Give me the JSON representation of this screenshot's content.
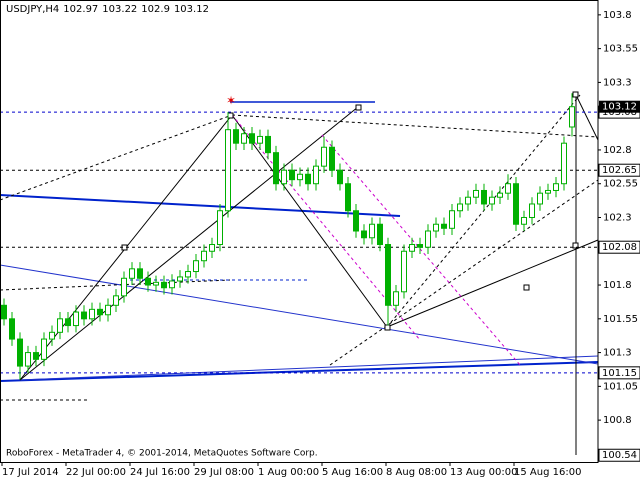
{
  "chart_data": {
    "type": "candlestick",
    "title": "USDJPY,H4",
    "footer": "RoboForex - MetaTrader 4, © 2001-2014, MetaQuotes Software Corp.",
    "up_color": "#ffffff",
    "down_color": "#00b000",
    "wick_color": "#00b000",
    "x": [
      "17 Jul 2014",
      null,
      null,
      null,
      null,
      null,
      null,
      null,
      "22 Jul 00:00",
      null,
      null,
      null,
      null,
      null,
      null,
      null,
      "24 Jul 16:00",
      null,
      null,
      null,
      null,
      null,
      null,
      null,
      "29 Jul 08:00",
      null,
      null,
      null,
      null,
      null,
      null,
      null,
      "1 Aug 00:00",
      null,
      null,
      null,
      null,
      null,
      null,
      null,
      "5 Aug 16:00",
      null,
      null,
      null,
      null,
      null,
      null,
      null,
      "8 Aug 08:00",
      null,
      null,
      null,
      null,
      null,
      null,
      null,
      "13 Aug 00:00",
      null,
      null,
      null,
      null,
      null,
      null,
      null,
      "15 Aug 16:00",
      null,
      null,
      null,
      null,
      null,
      null,
      null
    ],
    "open": [
      101.65,
      101.55,
      101.4,
      101.2,
      101.3,
      101.25,
      101.4,
      101.45,
      101.55,
      101.5,
      101.6,
      101.55,
      101.62,
      101.58,
      101.65,
      101.72,
      101.85,
      101.92,
      101.85,
      101.8,
      101.82,
      101.78,
      101.83,
      101.86,
      101.9,
      101.98,
      102.05,
      102.1,
      102.35,
      102.95,
      102.85,
      102.92,
      102.85,
      102.9,
      102.78,
      102.55,
      102.65,
      102.58,
      102.62,
      102.55,
      102.68,
      102.82,
      102.65,
      102.55,
      102.35,
      102.2,
      102.15,
      102.25,
      102.1,
      101.65,
      101.75,
      102.05,
      102.1,
      102.08,
      102.2,
      102.25,
      102.22,
      102.35,
      102.4,
      102.45,
      102.5,
      102.4,
      102.45,
      102.48,
      102.55,
      102.25,
      102.3,
      102.4,
      102.48,
      102.5,
      102.55,
      102.97
    ],
    "high": [
      101.7,
      101.6,
      101.45,
      101.35,
      101.35,
      101.45,
      101.5,
      101.6,
      101.6,
      101.65,
      101.65,
      101.67,
      101.67,
      101.7,
      101.77,
      101.9,
      101.97,
      101.97,
      101.9,
      101.87,
      101.87,
      101.88,
      101.91,
      101.95,
      102.03,
      102.1,
      102.15,
      102.4,
      103.08,
      103.0,
      102.97,
      102.97,
      102.95,
      102.95,
      102.83,
      102.7,
      102.7,
      102.67,
      102.67,
      102.73,
      102.9,
      102.87,
      102.7,
      102.6,
      102.4,
      102.25,
      102.3,
      102.3,
      102.15,
      101.8,
      102.1,
      102.15,
      102.15,
      102.25,
      102.3,
      102.3,
      102.4,
      102.45,
      102.5,
      102.55,
      102.55,
      102.5,
      102.53,
      102.62,
      102.6,
      102.35,
      102.45,
      102.53,
      102.55,
      102.6,
      102.9,
      103.22
    ],
    "low": [
      101.5,
      101.35,
      101.1,
      101.15,
      101.2,
      101.2,
      101.35,
      101.4,
      101.45,
      101.45,
      101.5,
      101.5,
      101.53,
      101.53,
      101.6,
      101.67,
      101.8,
      101.8,
      101.75,
      101.75,
      101.73,
      101.73,
      101.78,
      101.81,
      101.85,
      101.93,
      102.0,
      102.05,
      102.3,
      102.8,
      102.8,
      102.8,
      102.8,
      102.73,
      102.5,
      102.5,
      102.53,
      102.53,
      102.5,
      102.5,
      102.63,
      102.6,
      102.5,
      102.3,
      102.15,
      102.1,
      102.1,
      102.05,
      101.5,
      101.6,
      101.7,
      102.0,
      102.03,
      102.03,
      102.15,
      102.17,
      102.17,
      102.3,
      102.35,
      102.4,
      102.35,
      102.35,
      102.4,
      102.43,
      102.2,
      102.2,
      102.25,
      102.35,
      102.43,
      102.45,
      102.5,
      102.9
    ],
    "close": [
      101.55,
      101.4,
      101.2,
      101.3,
      101.25,
      101.4,
      101.45,
      101.55,
      101.5,
      101.6,
      101.55,
      101.62,
      101.58,
      101.65,
      101.72,
      101.85,
      101.92,
      101.85,
      101.8,
      101.82,
      101.78,
      101.83,
      101.86,
      101.9,
      101.98,
      102.05,
      102.1,
      102.35,
      102.95,
      102.85,
      102.92,
      102.85,
      102.9,
      102.78,
      102.55,
      102.65,
      102.58,
      102.62,
      102.55,
      102.68,
      102.82,
      102.65,
      102.55,
      102.35,
      102.2,
      102.15,
      102.25,
      102.1,
      101.65,
      101.75,
      102.05,
      102.1,
      102.08,
      102.2,
      102.25,
      102.22,
      102.35,
      102.4,
      102.45,
      102.5,
      102.4,
      102.45,
      102.48,
      102.55,
      102.25,
      102.3,
      102.4,
      102.48,
      102.5,
      102.55,
      102.85,
      103.12
    ],
    "ylim": [
      100.49,
      103.91
    ],
    "yticks": [
      103.8,
      103.55,
      103.3,
      102.8,
      102.55,
      102.3,
      101.8,
      101.55,
      101.3,
      101.05,
      100.8
    ],
    "levels": [
      {
        "value": 103.08,
        "color": "#0000cc",
        "line": true
      },
      {
        "value": 102.65,
        "color": "#000000",
        "line": true
      },
      {
        "value": 102.08,
        "color": "#000000",
        "line": true
      },
      {
        "value": 101.15,
        "color": "#0000cc",
        "line": true
      },
      {
        "value": 100.54,
        "color": "#000000",
        "line": false
      }
    ]
  }
}
